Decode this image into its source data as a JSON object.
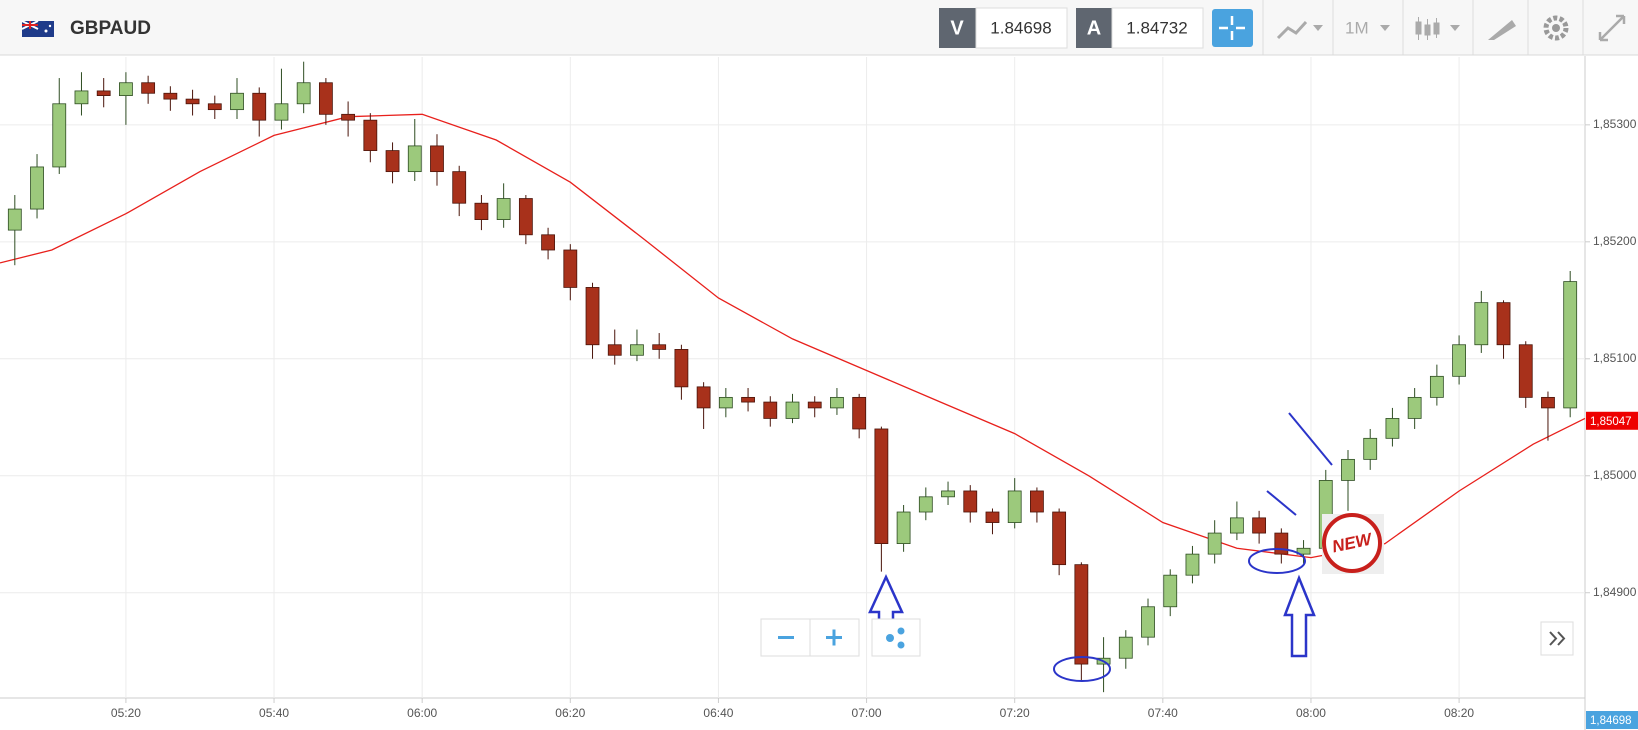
{
  "toolbar": {
    "symbol": "GBPAUD",
    "bid_label": "V",
    "bid": "1.84698",
    "ask_label": "A",
    "ask": "1.84732",
    "timeframe": "1M"
  },
  "chart_data": {
    "type": "candlestick",
    "x": [
      "05:05",
      "05:08",
      "05:11",
      "05:14",
      "05:17",
      "05:20",
      "05:23",
      "05:26",
      "05:29",
      "05:32",
      "05:35",
      "05:38",
      "05:41",
      "05:44",
      "05:47",
      "05:50",
      "05:53",
      "05:56",
      "05:59",
      "06:02",
      "06:05",
      "06:08",
      "06:11",
      "06:14",
      "06:17",
      "06:20",
      "06:23",
      "06:26",
      "06:29",
      "06:32",
      "06:35",
      "06:38",
      "06:41",
      "06:44",
      "06:47",
      "06:50",
      "06:53",
      "06:56",
      "06:59",
      "07:02",
      "07:05",
      "07:08",
      "07:11",
      "07:14",
      "07:17",
      "07:20",
      "07:23",
      "07:26",
      "07:29",
      "07:32",
      "07:35",
      "07:38",
      "07:41",
      "07:44",
      "07:47",
      "07:50",
      "07:53",
      "07:56",
      "07:59",
      "08:02",
      "08:05",
      "08:08",
      "08:11",
      "08:14",
      "08:17",
      "08:20",
      "08:23",
      "08:26",
      "08:29",
      "08:32",
      "08:35"
    ],
    "open": [
      1.8521,
      1.85228,
      1.85264,
      1.85318,
      1.85329,
      1.85325,
      1.85336,
      1.85327,
      1.85322,
      1.85318,
      1.85313,
      1.85327,
      1.85304,
      1.85318,
      1.85336,
      1.85309,
      1.85304,
      1.85278,
      1.8526,
      1.85282,
      1.8526,
      1.85233,
      1.85219,
      1.85237,
      1.85206,
      1.85193,
      1.85161,
      1.85112,
      1.85103,
      1.85112,
      1.85108,
      1.85076,
      1.85058,
      1.85067,
      1.85063,
      1.85049,
      1.85063,
      1.85058,
      1.85067,
      1.8504,
      1.84942,
      1.84969,
      1.84982,
      1.84987,
      1.84969,
      1.8496,
      1.84987,
      1.84969,
      1.84924,
      1.84839,
      1.84844,
      1.84862,
      1.84888,
      1.84915,
      1.84933,
      1.84951,
      1.84964,
      1.84951,
      1.84933,
      1.84938,
      1.84996,
      1.85014,
      1.85032,
      1.85049,
      1.85067,
      1.85085,
      1.85112,
      1.85148,
      1.85112,
      1.85067,
      1.85058
    ],
    "high": [
      1.8524,
      1.85275,
      1.8534,
      1.85345,
      1.8534,
      1.85345,
      1.85342,
      1.85333,
      1.8533,
      1.85325,
      1.8534,
      1.85332,
      1.85348,
      1.85354,
      1.8534,
      1.8532,
      1.8531,
      1.85285,
      1.85305,
      1.85292,
      1.85265,
      1.8524,
      1.8525,
      1.8524,
      1.85212,
      1.85198,
      1.85165,
      1.85125,
      1.85125,
      1.85122,
      1.85112,
      1.8508,
      1.85075,
      1.85075,
      1.85068,
      1.8507,
      1.85068,
      1.85075,
      1.8507,
      1.85042,
      1.84975,
      1.8499,
      1.84995,
      1.84992,
      1.84972,
      1.84998,
      1.8499,
      1.84972,
      1.84926,
      1.84862,
      1.84868,
      1.84895,
      1.8492,
      1.8494,
      1.84962,
      1.84978,
      1.8497,
      1.84955,
      1.84945,
      1.85005,
      1.85022,
      1.8504,
      1.85058,
      1.85075,
      1.85095,
      1.8512,
      1.85158,
      1.8515,
      1.85115,
      1.85072,
      1.85175
    ],
    "low": [
      1.8518,
      1.8522,
      1.85258,
      1.85308,
      1.85315,
      1.853,
      1.85318,
      1.85312,
      1.85308,
      1.85305,
      1.85305,
      1.8529,
      1.85296,
      1.8531,
      1.853,
      1.8529,
      1.85268,
      1.8525,
      1.85252,
      1.85248,
      1.85222,
      1.8521,
      1.85212,
      1.85198,
      1.85185,
      1.8515,
      1.851,
      1.85095,
      1.85098,
      1.851,
      1.85065,
      1.8504,
      1.8505,
      1.85055,
      1.85042,
      1.85045,
      1.8505,
      1.85052,
      1.85032,
      1.84918,
      1.84935,
      1.84962,
      1.84975,
      1.8496,
      1.8495,
      1.84955,
      1.8496,
      1.84915,
      1.84825,
      1.84815,
      1.84835,
      1.84855,
      1.8488,
      1.84908,
      1.84925,
      1.84945,
      1.84942,
      1.84925,
      1.84925,
      1.84932,
      1.8497,
      1.85005,
      1.85025,
      1.8504,
      1.8506,
      1.85078,
      1.85105,
      1.851,
      1.85058,
      1.8503,
      1.8505
    ],
    "close": [
      1.85228,
      1.85264,
      1.85318,
      1.85329,
      1.85325,
      1.85336,
      1.85327,
      1.85322,
      1.85318,
      1.85313,
      1.85327,
      1.85304,
      1.85318,
      1.85336,
      1.85309,
      1.85304,
      1.85278,
      1.8526,
      1.85282,
      1.8526,
      1.85233,
      1.85219,
      1.85237,
      1.85206,
      1.85193,
      1.85161,
      1.85112,
      1.85103,
      1.85112,
      1.85108,
      1.85076,
      1.85058,
      1.85067,
      1.85063,
      1.85049,
      1.85063,
      1.85058,
      1.85067,
      1.8504,
      1.84942,
      1.84969,
      1.84982,
      1.84987,
      1.84969,
      1.8496,
      1.84987,
      1.84969,
      1.84924,
      1.84839,
      1.84844,
      1.84862,
      1.84888,
      1.84915,
      1.84933,
      1.84951,
      1.84964,
      1.84951,
      1.84933,
      1.84938,
      1.84996,
      1.85014,
      1.85032,
      1.85049,
      1.85067,
      1.85085,
      1.85112,
      1.85148,
      1.85112,
      1.85067,
      1.85058,
      1.85166
    ],
    "up_color": "#9cc97c",
    "down_color": "#a8311b",
    "ma": {
      "color": "#e8201c",
      "x": [
        "05:03",
        "05:10",
        "05:20",
        "05:30",
        "05:40",
        "05:50",
        "06:00",
        "06:10",
        "06:20",
        "06:30",
        "06:40",
        "06:50",
        "07:00",
        "07:10",
        "07:20",
        "07:30",
        "07:40",
        "07:50",
        "08:00",
        "08:10",
        "08:20",
        "08:30",
        "08:37"
      ],
      "values": [
        1.85182,
        1.85193,
        1.85224,
        1.8526,
        1.85291,
        1.85307,
        1.85309,
        1.85287,
        1.85251,
        1.85202,
        1.85152,
        1.85117,
        1.8509,
        1.85063,
        1.85036,
        1.85,
        1.8496,
        1.84938,
        1.8493,
        1.84942,
        1.84987,
        1.85027,
        1.85049
      ]
    },
    "xlim": [
      "05:03",
      "08:37"
    ],
    "xticks": [
      "05:20",
      "05:40",
      "06:00",
      "06:20",
      "06:40",
      "07:00",
      "07:20",
      "07:40",
      "08:00",
      "08:20"
    ],
    "ylim": [
      1.8481,
      1.85358
    ],
    "yticks": [
      {
        "value": 1.853,
        "label": "1,85300"
      },
      {
        "value": 1.852,
        "label": "1,85200"
      },
      {
        "value": 1.851,
        "label": "1,85100"
      },
      {
        "value": 1.85,
        "label": "1,85000"
      },
      {
        "value": 1.849,
        "label": "1,84900"
      }
    ],
    "grid": true,
    "price_markers": [
      {
        "value": 1.85047,
        "label": "1,85047",
        "color": "#ee0000"
      },
      {
        "value": 1.84698,
        "label": "1,84698",
        "color": "#4aa3df"
      }
    ],
    "sticker": "NEW"
  }
}
